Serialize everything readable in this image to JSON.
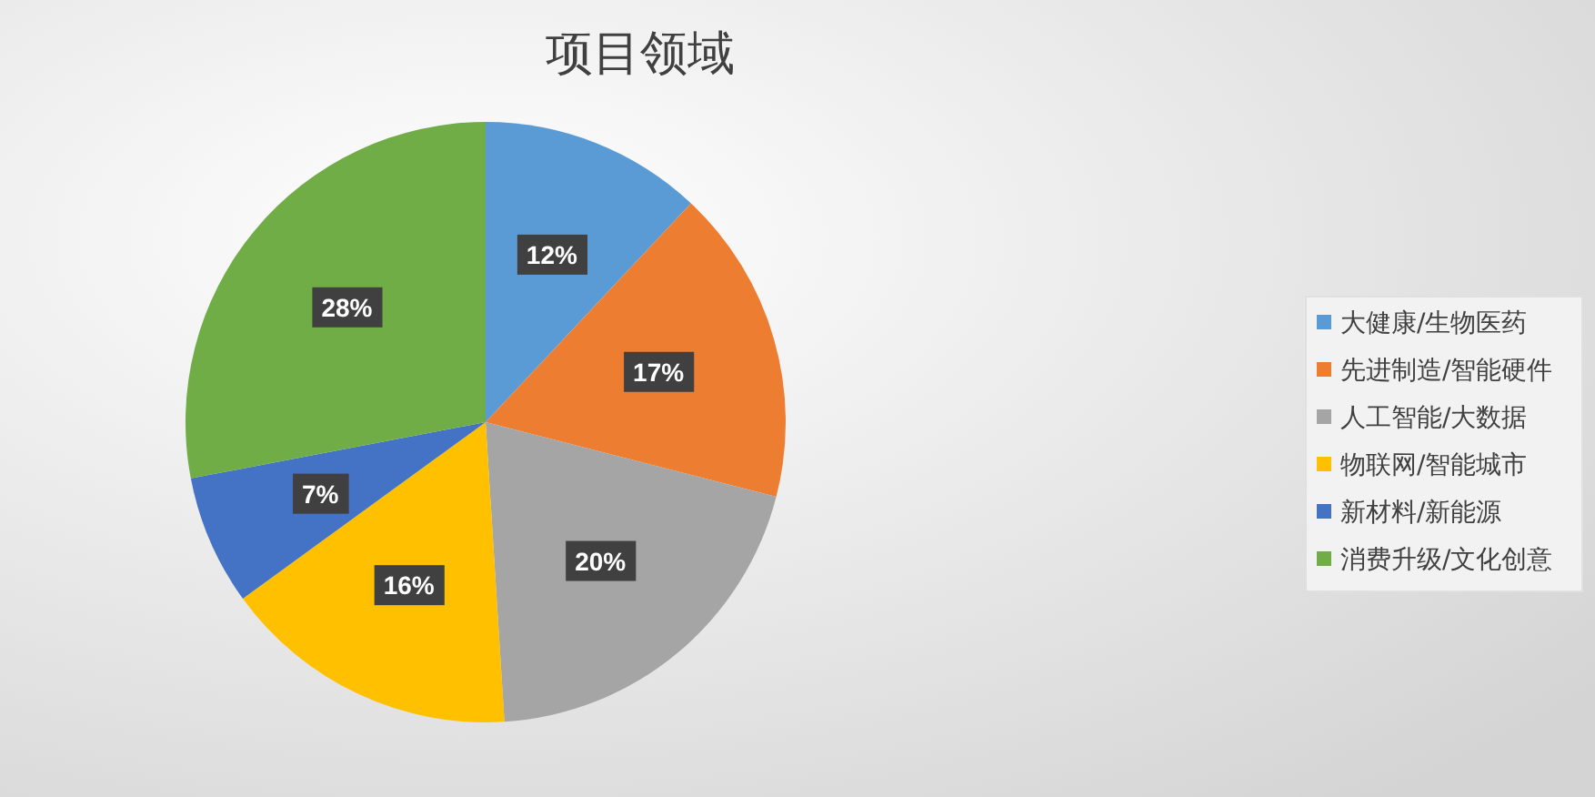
{
  "chart_data": {
    "type": "pie",
    "title": "项目领域",
    "categories": [
      "大健康/生物医药",
      "先进制造/智能硬件",
      "人工智能/大数据",
      "物联网/智能城市",
      "新材料/新能源",
      "消费升级/文化创意"
    ],
    "values": [
      12,
      17,
      20,
      16,
      7,
      28
    ],
    "value_labels": [
      "12%",
      "17%",
      "20%",
      "16%",
      "7%",
      "28%"
    ],
    "colors": [
      "#5b9bd5",
      "#ed7d31",
      "#a5a5a5",
      "#ffc000",
      "#4472c4",
      "#70ad47"
    ],
    "legend": "right"
  }
}
